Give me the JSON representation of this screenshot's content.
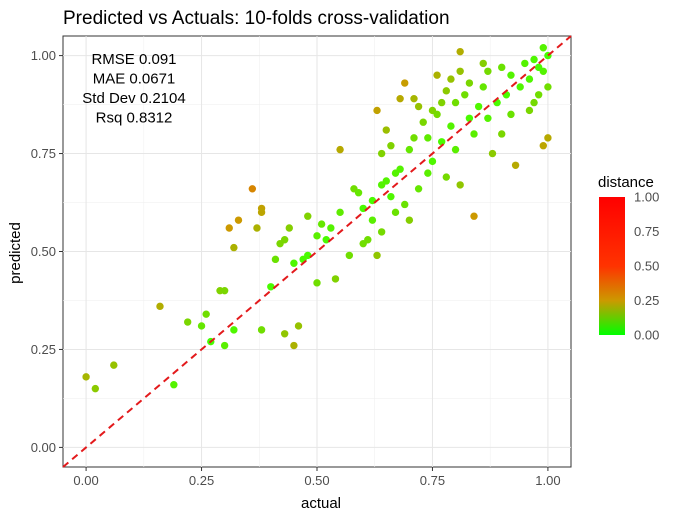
{
  "chart_data": {
    "type": "scatter",
    "title": "Predicted vs Actuals: 10-folds cross-validation",
    "xlabel": "actual",
    "ylabel": "predicted",
    "xlim": [
      -0.05,
      1.05
    ],
    "ylim": [
      -0.05,
      1.05
    ],
    "x_ticks": [
      "0.00",
      "0.25",
      "0.50",
      "0.75",
      "1.00"
    ],
    "y_ticks": [
      "0.00",
      "0.25",
      "0.50",
      "0.75",
      "1.00"
    ],
    "grid": true,
    "reference_line": {
      "type": "identity",
      "style": "dashed",
      "color": "#e31a1c"
    },
    "annotation_lines": [
      "RMSE 0.091",
      "MAE 0.0671",
      "Std Dev 0.2104",
      "Rsq 0.8312"
    ],
    "legend": {
      "title": "distance",
      "position": "right",
      "ticks": [
        "1.00",
        "0.75",
        "0.50",
        "0.25",
        "0.00"
      ],
      "gradient": [
        "#00ff00",
        "#cc9900",
        "#ff0000"
      ]
    },
    "points": [
      {
        "x": 0.0,
        "y": 0.18
      },
      {
        "x": 0.02,
        "y": 0.15
      },
      {
        "x": 0.06,
        "y": 0.21
      },
      {
        "x": 0.16,
        "y": 0.36
      },
      {
        "x": 0.19,
        "y": 0.16
      },
      {
        "x": 0.22,
        "y": 0.32
      },
      {
        "x": 0.25,
        "y": 0.31
      },
      {
        "x": 0.26,
        "y": 0.34
      },
      {
        "x": 0.27,
        "y": 0.27
      },
      {
        "x": 0.29,
        "y": 0.4
      },
      {
        "x": 0.3,
        "y": 0.4
      },
      {
        "x": 0.3,
        "y": 0.26
      },
      {
        "x": 0.31,
        "y": 0.56
      },
      {
        "x": 0.32,
        "y": 0.3
      },
      {
        "x": 0.32,
        "y": 0.51
      },
      {
        "x": 0.33,
        "y": 0.58
      },
      {
        "x": 0.36,
        "y": 0.66
      },
      {
        "x": 0.37,
        "y": 0.56
      },
      {
        "x": 0.38,
        "y": 0.61
      },
      {
        "x": 0.38,
        "y": 0.6
      },
      {
        "x": 0.38,
        "y": 0.3
      },
      {
        "x": 0.4,
        "y": 0.41
      },
      {
        "x": 0.41,
        "y": 0.48
      },
      {
        "x": 0.42,
        "y": 0.52
      },
      {
        "x": 0.43,
        "y": 0.29
      },
      {
        "x": 0.43,
        "y": 0.53
      },
      {
        "x": 0.44,
        "y": 0.56
      },
      {
        "x": 0.45,
        "y": 0.26
      },
      {
        "x": 0.45,
        "y": 0.47
      },
      {
        "x": 0.46,
        "y": 0.31
      },
      {
        "x": 0.47,
        "y": 0.48
      },
      {
        "x": 0.48,
        "y": 0.49
      },
      {
        "x": 0.48,
        "y": 0.59
      },
      {
        "x": 0.5,
        "y": 0.42
      },
      {
        "x": 0.5,
        "y": 0.54
      },
      {
        "x": 0.51,
        "y": 0.57
      },
      {
        "x": 0.52,
        "y": 0.53
      },
      {
        "x": 0.53,
        "y": 0.56
      },
      {
        "x": 0.54,
        "y": 0.43
      },
      {
        "x": 0.55,
        "y": 0.6
      },
      {
        "x": 0.55,
        "y": 0.76
      },
      {
        "x": 0.57,
        "y": 0.49
      },
      {
        "x": 0.58,
        "y": 0.66
      },
      {
        "x": 0.59,
        "y": 0.65
      },
      {
        "x": 0.6,
        "y": 0.52
      },
      {
        "x": 0.6,
        "y": 0.61
      },
      {
        "x": 0.61,
        "y": 0.53
      },
      {
        "x": 0.62,
        "y": 0.58
      },
      {
        "x": 0.62,
        "y": 0.63
      },
      {
        "x": 0.63,
        "y": 0.49
      },
      {
        "x": 0.63,
        "y": 0.86
      },
      {
        "x": 0.64,
        "y": 0.55
      },
      {
        "x": 0.64,
        "y": 0.67
      },
      {
        "x": 0.64,
        "y": 0.75
      },
      {
        "x": 0.65,
        "y": 0.68
      },
      {
        "x": 0.65,
        "y": 0.81
      },
      {
        "x": 0.66,
        "y": 0.64
      },
      {
        "x": 0.66,
        "y": 0.77
      },
      {
        "x": 0.67,
        "y": 0.7
      },
      {
        "x": 0.67,
        "y": 0.6
      },
      {
        "x": 0.68,
        "y": 0.71
      },
      {
        "x": 0.68,
        "y": 0.89
      },
      {
        "x": 0.69,
        "y": 0.62
      },
      {
        "x": 0.69,
        "y": 0.93
      },
      {
        "x": 0.7,
        "y": 0.76
      },
      {
        "x": 0.7,
        "y": 0.58
      },
      {
        "x": 0.71,
        "y": 0.89
      },
      {
        "x": 0.71,
        "y": 0.79
      },
      {
        "x": 0.72,
        "y": 0.66
      },
      {
        "x": 0.72,
        "y": 0.87
      },
      {
        "x": 0.73,
        "y": 0.83
      },
      {
        "x": 0.74,
        "y": 0.79
      },
      {
        "x": 0.74,
        "y": 0.7
      },
      {
        "x": 0.75,
        "y": 0.73
      },
      {
        "x": 0.75,
        "y": 0.86
      },
      {
        "x": 0.76,
        "y": 0.95
      },
      {
        "x": 0.76,
        "y": 0.85
      },
      {
        "x": 0.77,
        "y": 0.78
      },
      {
        "x": 0.77,
        "y": 0.88
      },
      {
        "x": 0.78,
        "y": 0.69
      },
      {
        "x": 0.79,
        "y": 0.94
      },
      {
        "x": 0.79,
        "y": 0.82
      },
      {
        "x": 0.8,
        "y": 0.88
      },
      {
        "x": 0.8,
        "y": 0.76
      },
      {
        "x": 0.81,
        "y": 0.96
      },
      {
        "x": 0.81,
        "y": 0.67
      },
      {
        "x": 0.82,
        "y": 0.9
      },
      {
        "x": 0.83,
        "y": 0.84
      },
      {
        "x": 0.83,
        "y": 0.93
      },
      {
        "x": 0.84,
        "y": 0.59
      },
      {
        "x": 0.84,
        "y": 0.8
      },
      {
        "x": 0.85,
        "y": 0.87
      },
      {
        "x": 0.86,
        "y": 0.92
      },
      {
        "x": 0.87,
        "y": 0.84
      },
      {
        "x": 0.87,
        "y": 0.96
      },
      {
        "x": 0.88,
        "y": 0.75
      },
      {
        "x": 0.89,
        "y": 0.88
      },
      {
        "x": 0.9,
        "y": 0.97
      },
      {
        "x": 0.9,
        "y": 0.8
      },
      {
        "x": 0.91,
        "y": 0.9
      },
      {
        "x": 0.92,
        "y": 0.85
      },
      {
        "x": 0.92,
        "y": 0.95
      },
      {
        "x": 0.93,
        "y": 0.72
      },
      {
        "x": 0.94,
        "y": 0.92
      },
      {
        "x": 0.95,
        "y": 0.98
      },
      {
        "x": 0.96,
        "y": 0.86
      },
      {
        "x": 0.96,
        "y": 0.94
      },
      {
        "x": 0.97,
        "y": 0.99
      },
      {
        "x": 0.98,
        "y": 0.9
      },
      {
        "x": 0.99,
        "y": 0.77
      },
      {
        "x": 0.99,
        "y": 0.96
      },
      {
        "x": 1.0,
        "y": 0.79
      },
      {
        "x": 1.0,
        "y": 0.92
      },
      {
        "x": 1.0,
        "y": 1.0
      },
      {
        "x": 0.99,
        "y": 1.02
      },
      {
        "x": 0.98,
        "y": 0.97
      },
      {
        "x": 0.97,
        "y": 0.88
      },
      {
        "x": 0.86,
        "y": 0.98
      },
      {
        "x": 0.81,
        "y": 1.01
      },
      {
        "x": 0.78,
        "y": 0.91
      }
    ]
  }
}
